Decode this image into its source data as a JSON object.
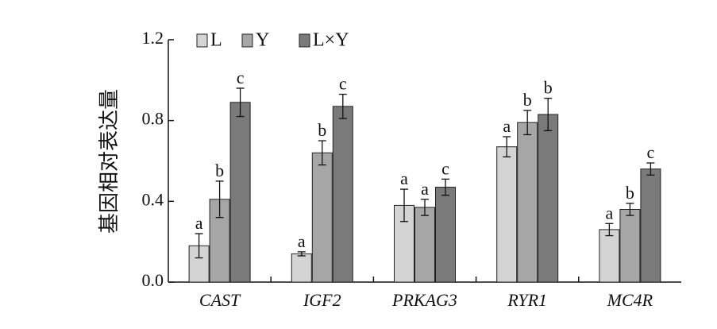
{
  "chart_data": {
    "type": "bar",
    "ylabel": "基因相对表达量",
    "ylim": [
      0,
      1.2
    ],
    "yticks": [
      "0.0",
      "0.4",
      "0.8",
      "1.2"
    ],
    "ytick_values": [
      0,
      0.4,
      0.8,
      1.2
    ],
    "legend_position": "top-left",
    "categories": [
      "CAST",
      "IGF2",
      "PRKAG3",
      "RYR1",
      "MC4R"
    ],
    "series": [
      {
        "name": "L",
        "color": "#d4d4d4",
        "values": [
          0.18,
          0.14,
          0.38,
          0.67,
          0.26
        ],
        "errors": [
          0.06,
          0.01,
          0.08,
          0.05,
          0.03
        ],
        "labels": [
          "a",
          "a",
          "a",
          "a",
          "a"
        ]
      },
      {
        "name": "Y",
        "color": "#a6a6a6",
        "values": [
          0.41,
          0.64,
          0.37,
          0.79,
          0.36
        ],
        "errors": [
          0.09,
          0.06,
          0.04,
          0.06,
          0.03
        ],
        "labels": [
          "b",
          "b",
          "a",
          "b",
          "b"
        ]
      },
      {
        "name": "L×Y",
        "color": "#7a7a7a",
        "values": [
          0.89,
          0.87,
          0.47,
          0.83,
          0.56
        ],
        "errors": [
          0.07,
          0.06,
          0.04,
          0.08,
          0.03
        ],
        "labels": [
          "c",
          "c",
          "c",
          "b",
          "c"
        ]
      }
    ]
  }
}
